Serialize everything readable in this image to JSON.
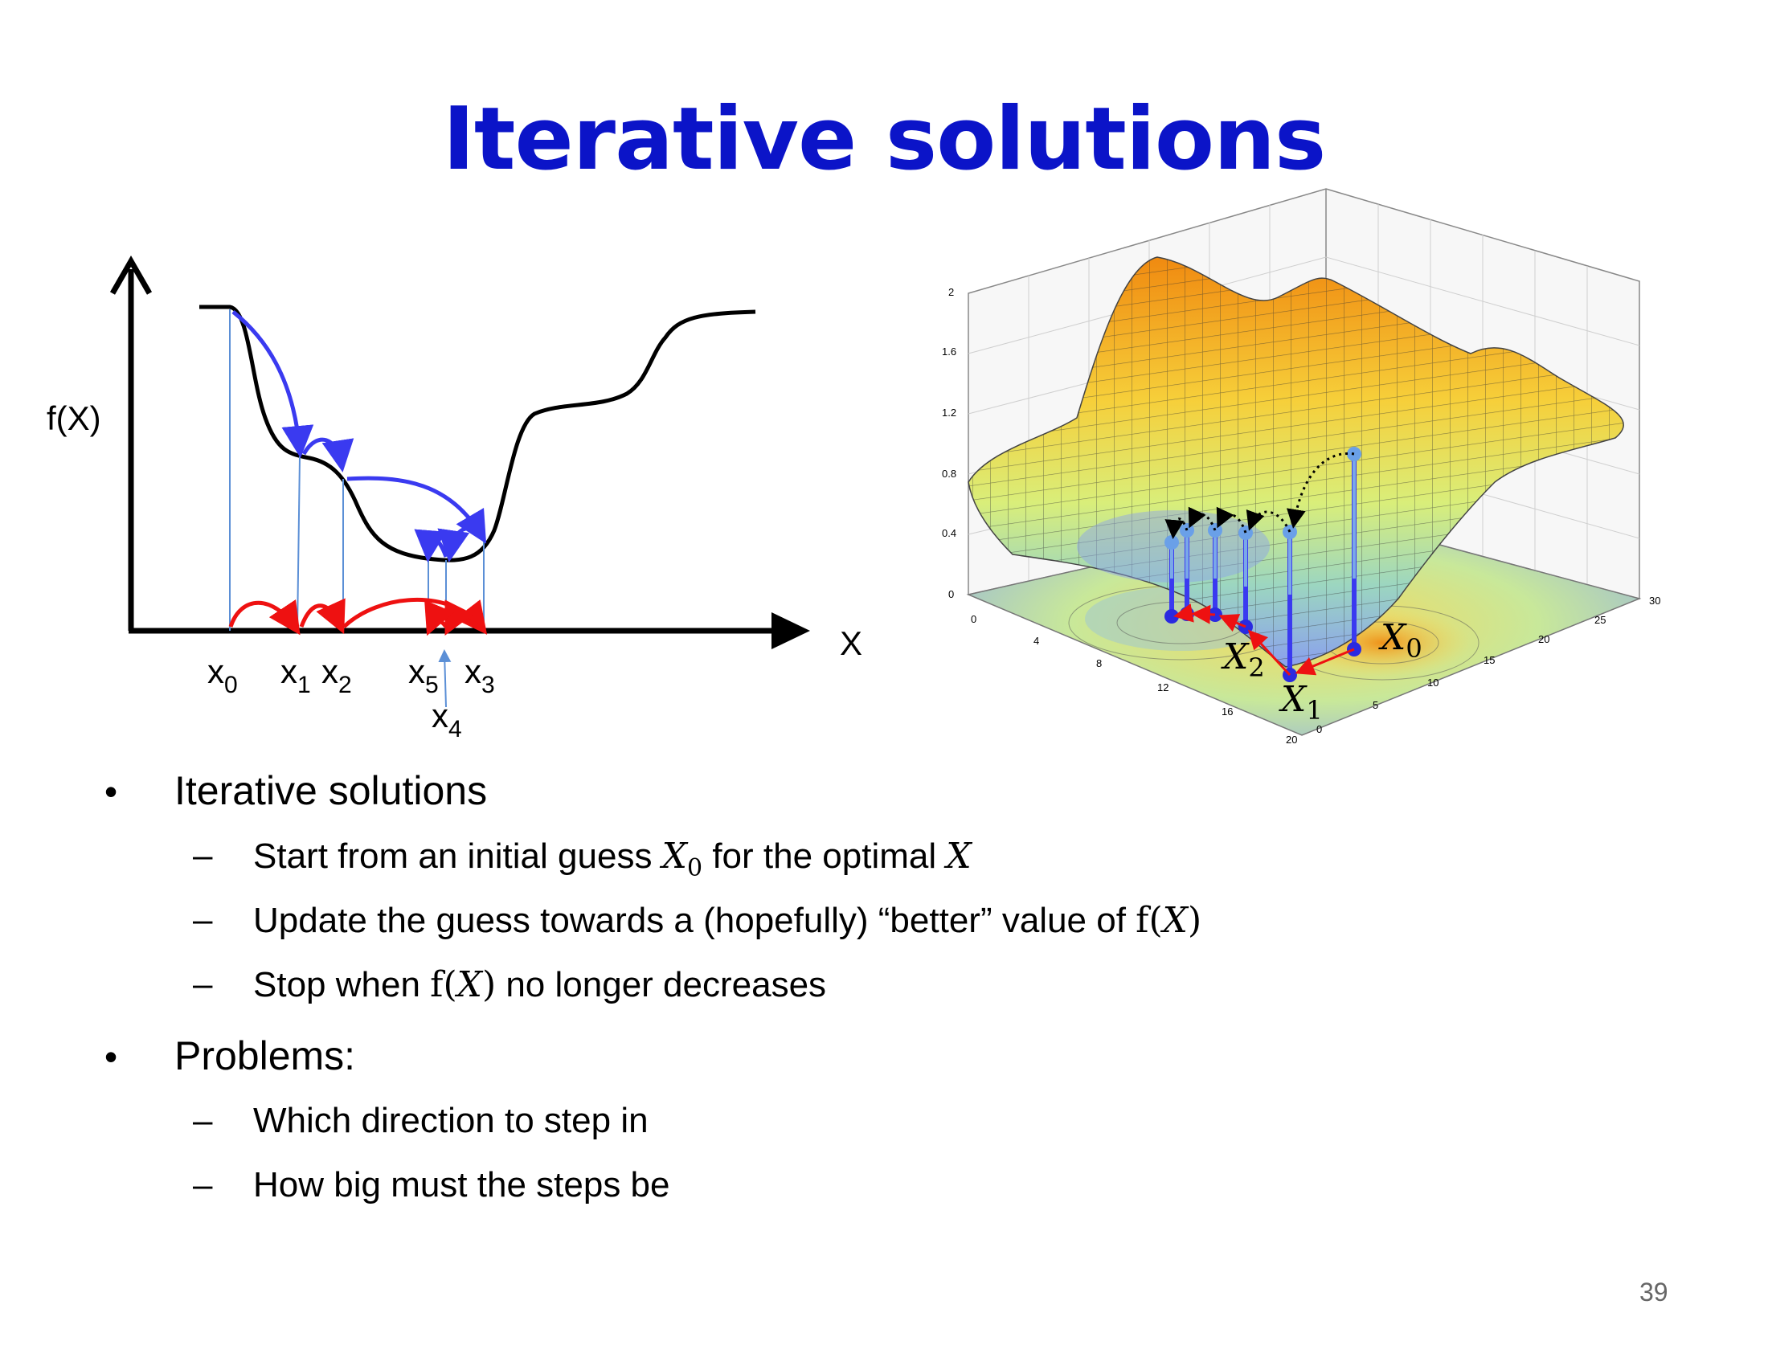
{
  "title": "Iterative solutions",
  "left_diagram": {
    "y_axis_label": "f(X)",
    "x_axis_label": "X",
    "ticks": [
      {
        "base": "x",
        "sub": "0"
      },
      {
        "base": "x",
        "sub": "1"
      },
      {
        "base": "x",
        "sub": "2"
      },
      {
        "base": "x",
        "sub": "5"
      },
      {
        "base": "x",
        "sub": "3"
      },
      {
        "base": "x",
        "sub": "4"
      }
    ],
    "colors": {
      "curve": "#000000",
      "blue_arrows": "#3a3af0",
      "red_arrows": "#ee1111",
      "guide_lines": "#5b8fd6"
    }
  },
  "right_diagram": {
    "z_ticks": [
      "2",
      "1.6",
      "1.2",
      "0.8",
      "0.4",
      "0"
    ],
    "x_ticks": [
      "0",
      "4",
      "8",
      "12",
      "16",
      "20"
    ],
    "y_ticks": [
      "0",
      "5",
      "10",
      "15",
      "20",
      "25",
      "30"
    ],
    "labels": [
      {
        "base": "X",
        "sub": "0"
      },
      {
        "base": "X",
        "sub": "2"
      },
      {
        "base": "X",
        "sub": "1"
      }
    ],
    "colors": {
      "surface_high": "#f2a21a",
      "surface_low": "#8aa8ee",
      "mesh": "#333333",
      "path": "#3a3af0",
      "step": "#ee1111"
    }
  },
  "bullets": [
    {
      "text": "Iterative solutions",
      "children": [
        {
          "pre": "Start from an initial guess ",
          "m1": "X",
          "m1sub": "0",
          "mid": " for the optimal ",
          "m2": "X",
          "post": ""
        },
        {
          "pre": "Update the guess towards a (hopefully) “better” value of ",
          "fn": "f(",
          "m1": "X",
          "close": ")",
          "post": ""
        },
        {
          "pre": "Stop when ",
          "fn": "f(",
          "m1": "X",
          "close": ")",
          "post": " no longer decreases"
        }
      ]
    },
    {
      "text": "Problems:",
      "children": [
        {
          "pre": "Which direction to step in"
        },
        {
          "pre": "How big must the steps be"
        }
      ]
    }
  ],
  "bullet_marks": {
    "bullet": "•",
    "dash": "–"
  },
  "page_number": "39"
}
